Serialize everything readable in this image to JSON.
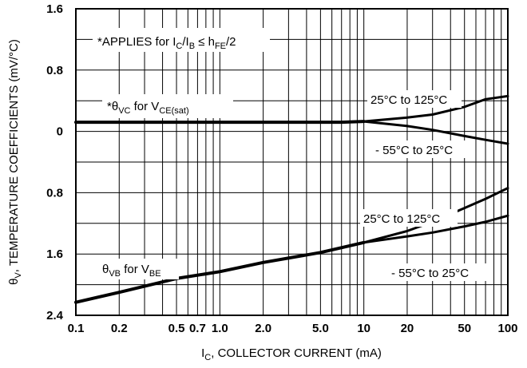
{
  "chart_data": {
    "type": "line",
    "x_scale": "log",
    "xlim": [
      0.1,
      100
    ],
    "ylim": [
      -2.4,
      1.6
    ],
    "grid": true,
    "xlabel": {
      "main": "I",
      "sub": "C",
      "rest": ", COLLECTOR CURRENT (mA)"
    },
    "ylabel": {
      "main": "θ",
      "sub": "V",
      "rest": ", TEMPERATURE COEFFICIENTS (mV/°C)"
    },
    "x_ticks": [
      {
        "value": 0.1,
        "label": "0.1"
      },
      {
        "value": 0.2,
        "label": "0.2"
      },
      {
        "value": 0.5,
        "label": "0.5"
      },
      {
        "value": 0.7,
        "label": "0.7"
      },
      {
        "value": 1.0,
        "label": "1.0"
      },
      {
        "value": 2.0,
        "label": "2.0"
      },
      {
        "value": 5.0,
        "label": "5.0"
      },
      {
        "value": 10,
        "label": "10"
      },
      {
        "value": 20,
        "label": "20"
      },
      {
        "value": 50,
        "label": "50"
      },
      {
        "value": 100,
        "label": "100"
      }
    ],
    "y_ticks": [
      {
        "value": 1.6,
        "label": "1.6"
      },
      {
        "value": 0.8,
        "label": "0.8"
      },
      {
        "value": 0,
        "label": "0"
      },
      {
        "value": -0.8,
        "label": "0.8"
      },
      {
        "value": -1.6,
        "label": "1.6"
      },
      {
        "value": -2.4,
        "label": "2.4"
      }
    ],
    "series": [
      {
        "x": [
          0.1,
          0.3,
          1,
          3,
          7,
          10
        ],
        "y": [
          0.12,
          0.12,
          0.12,
          0.12,
          0.12,
          0.13
        ]
      },
      {
        "x": [
          10,
          20,
          30,
          50,
          70,
          100
        ],
        "y": [
          0.13,
          0.18,
          0.22,
          0.32,
          0.42,
          0.46
        ]
      },
      {
        "x": [
          10,
          20,
          30,
          50,
          70,
          100
        ],
        "y": [
          0.13,
          0.07,
          0.02,
          -0.06,
          -0.11,
          -0.16
        ]
      },
      {
        "x": [
          0.1,
          0.2,
          0.5,
          1,
          2,
          5,
          10
        ],
        "y": [
          -2.23,
          -2.1,
          -1.92,
          -1.83,
          -1.71,
          -1.58,
          -1.45
        ]
      },
      {
        "x": [
          10,
          20,
          30,
          50,
          70,
          100
        ],
        "y": [
          -1.45,
          -1.3,
          -1.18,
          -1.0,
          -0.88,
          -0.74
        ]
      },
      {
        "x": [
          10,
          20,
          30,
          50,
          70,
          100
        ],
        "y": [
          -1.45,
          -1.37,
          -1.32,
          -1.24,
          -1.18,
          -1.1
        ]
      }
    ]
  },
  "annotations": {
    "applies": {
      "a": "*APPLIES for I",
      "b": "C",
      "c": "/I",
      "d": "B",
      "e": " ≤ h",
      "f": "FE",
      "g": "/2"
    },
    "theta_vc": {
      "a": "*θ",
      "b": "VC",
      "c": " for V",
      "d": "CE(sat)"
    },
    "vc_hot": "25°C to 125°C",
    "vc_cold": "- 55°C to 25°C",
    "vb_hot": "25°C to 125°C",
    "vb_cold": "- 55°C to 25°C",
    "theta_vb": {
      "a": "θ",
      "b": "VB",
      "c": " for V",
      "d": "BE"
    }
  }
}
